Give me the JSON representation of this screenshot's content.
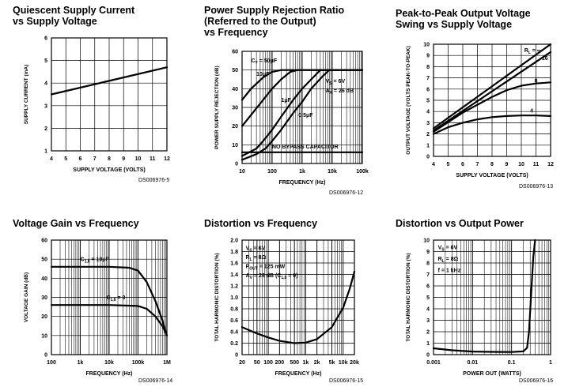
{
  "chart_data": [
    {
      "type": "line",
      "title": "Quiescent Supply Current\nvs Supply Voltage",
      "xlabel": "SUPPLY VOLTAGE (VOLTS)",
      "ylabel": "SUPPLY CURRENT (mA)",
      "figure_id": "DS006976-5",
      "x_scale": "linear",
      "xlim": [
        4,
        12
      ],
      "ylim": [
        1,
        6
      ],
      "x_ticks": [
        4,
        5,
        6,
        7,
        8,
        9,
        10,
        11,
        12
      ],
      "y_ticks": [
        1,
        2,
        3,
        4,
        5,
        6
      ],
      "x_tick_labels": [
        "4",
        "5",
        "6",
        "7",
        "8",
        "9",
        "10",
        "11",
        "12"
      ],
      "y_tick_labels": [
        "1",
        "2",
        "3",
        "4",
        "5",
        "6"
      ],
      "grid": true,
      "series": [
        {
          "x": [
            4,
            12
          ],
          "y": [
            3.5,
            4.7
          ]
        }
      ],
      "annotations": []
    },
    {
      "type": "line",
      "title": "Power Supply Rejection Ratio\n(Referred to the Output)\nvs Frequency",
      "xlabel": "FREQUENCY (Hz)",
      "ylabel": "POWER SUPPLY REJECTION (dB)",
      "figure_id": "DS006976-12",
      "x_scale": "log",
      "xlim": [
        10,
        100000
      ],
      "ylim": [
        0,
        60
      ],
      "x_ticks": [
        10,
        100,
        1000,
        10000,
        100000
      ],
      "y_ticks": [
        0,
        10,
        20,
        30,
        40,
        50,
        60
      ],
      "x_tick_labels": [
        "10",
        "100",
        "1k",
        "10k",
        "100k"
      ],
      "y_tick_labels": [
        "0",
        "10",
        "20",
        "30",
        "40",
        "50",
        "60"
      ],
      "grid": true,
      "series": [
        {
          "x": [
            10,
            20,
            50,
            100,
            200,
            500,
            1000,
            100000
          ],
          "y": [
            34,
            40,
            46,
            49,
            50,
            50,
            50,
            50
          ]
        },
        {
          "x": [
            10,
            20,
            50,
            100,
            200,
            400,
            700,
            1000,
            100000
          ],
          "y": [
            20,
            26,
            34,
            40,
            45,
            49,
            50,
            50,
            50
          ]
        },
        {
          "x": [
            10,
            30,
            50,
            100,
            200,
            500,
            1000,
            2000,
            4000,
            100000
          ],
          "y": [
            4,
            8,
            12,
            18,
            25,
            34,
            40,
            45,
            50,
            50
          ]
        },
        {
          "x": [
            10,
            30,
            60,
            100,
            200,
            500,
            1000,
            2000,
            5000,
            8000,
            100000
          ],
          "y": [
            2,
            5,
            8,
            12,
            18,
            27,
            33,
            40,
            47,
            50,
            50
          ]
        },
        {
          "x": [
            10,
            100000
          ],
          "y": [
            6,
            6
          ]
        }
      ],
      "annotations": [
        {
          "text": "C",
          "sub": "Y",
          "rest": " = 50μF",
          "x": 20,
          "y": 54
        },
        {
          "text": "10μF",
          "x": 30,
          "y": 47
        },
        {
          "text": "1μF",
          "x": 200,
          "y": 33
        },
        {
          "text": "0.5μF",
          "x": 750,
          "y": 25
        },
        {
          "text": "V",
          "sub": "S",
          "rest": " = 6V",
          "x": 6000,
          "y": 43
        },
        {
          "text": "A",
          "sub": "V",
          "rest": " = 26 dB",
          "x": 6000,
          "y": 38
        },
        {
          "text": "NO BYPASS CAPACITOR",
          "x": 100,
          "y": 8
        }
      ]
    },
    {
      "type": "line",
      "title": "Peak-to-Peak Output Voltage\nSwing vs Supply Voltage",
      "xlabel": "SUPPLY VOLTAGE (VOLTS)",
      "ylabel": "OUTPUT VOLTAGE (VOLTS PEAK-TO-PEAK)",
      "figure_id": "DS006976-13",
      "x_scale": "linear",
      "xlim": [
        4,
        12
      ],
      "ylim": [
        0,
        10
      ],
      "x_ticks": [
        4,
        5,
        6,
        7,
        8,
        9,
        10,
        11,
        12
      ],
      "y_ticks": [
        0,
        1,
        2,
        3,
        4,
        5,
        6,
        7,
        8,
        9,
        10
      ],
      "x_tick_labels": [
        "4",
        "5",
        "6",
        "7",
        "8",
        "9",
        "10",
        "11",
        "12"
      ],
      "y_tick_labels": [
        "0",
        "1",
        "2",
        "3",
        "4",
        "5",
        "6",
        "7",
        "8",
        "9",
        "10"
      ],
      "grid": true,
      "series": [
        {
          "x": [
            4,
            12
          ],
          "y": [
            2.5,
            10
          ]
        },
        {
          "x": [
            4,
            12
          ],
          "y": [
            2.3,
            9.3
          ]
        },
        {
          "x": [
            4,
            6,
            8,
            9,
            10,
            11,
            12
          ],
          "y": [
            2.2,
            3.9,
            5.3,
            5.9,
            6.3,
            6.5,
            6.6
          ]
        },
        {
          "x": [
            4,
            5,
            6,
            7,
            8,
            9,
            10,
            11,
            12
          ],
          "y": [
            2.0,
            2.6,
            3.0,
            3.3,
            3.5,
            3.6,
            3.65,
            3.65,
            3.6
          ]
        }
      ],
      "annotations": [
        {
          "text": "R",
          "sub": "L",
          "rest": " = ∞",
          "x": 10.2,
          "y": 9.3
        },
        {
          "text": "16",
          "x": 11.4,
          "y": 8.6
        },
        {
          "text": "8",
          "x": 10.9,
          "y": 6.6
        },
        {
          "text": "4",
          "x": 10.6,
          "y": 3.9
        }
      ]
    },
    {
      "type": "line",
      "title": "Voltage Gain vs Frequency",
      "xlabel": "FREQUENCY (Hz)",
      "ylabel": "VOLTAGE GAIN (dB)",
      "figure_id": "DS006976-14",
      "x_scale": "log",
      "xlim": [
        100,
        1000000
      ],
      "ylim": [
        0,
        60
      ],
      "x_ticks": [
        100,
        1000,
        10000,
        100000,
        1000000
      ],
      "y_ticks": [
        0,
        10,
        20,
        30,
        40,
        50,
        60
      ],
      "x_tick_labels": [
        "100",
        "1k",
        "10k",
        "100k",
        "1M"
      ],
      "y_tick_labels": [
        "0",
        "10",
        "20",
        "30",
        "40",
        "50",
        "60"
      ],
      "grid": true,
      "series": [
        {
          "x": [
            100,
            1000,
            10000,
            50000,
            100000,
            200000,
            400000,
            700000,
            1000000
          ],
          "y": [
            46,
            46,
            46,
            45.5,
            44,
            38,
            28,
            18,
            10
          ]
        },
        {
          "x": [
            100,
            1000,
            10000,
            100000,
            200000,
            400000,
            700000,
            1000000
          ],
          "y": [
            26,
            26,
            26,
            25.5,
            24,
            20,
            15,
            10
          ]
        }
      ],
      "annotations": [
        {
          "text": "C",
          "sub": "1,8",
          "rest": " = 10μF",
          "x": 1000,
          "y": 49
        },
        {
          "text": "C",
          "sub": "1,8",
          "rest": " = 0",
          "x": 8000,
          "y": 29
        }
      ]
    },
    {
      "type": "line",
      "title": "Distortion vs Frequency",
      "xlabel": "FREQUENCY (Hz)",
      "ylabel": "TOTAL HARMONIC DISTORTION (%)",
      "figure_id": "DS006976-15",
      "x_scale": "log",
      "xlim": [
        20,
        20000
      ],
      "ylim": [
        0,
        2.0
      ],
      "x_ticks": [
        20,
        50,
        100,
        200,
        500,
        1000,
        2000,
        5000,
        10000,
        20000
      ],
      "y_ticks": [
        0,
        0.2,
        0.4,
        0.6,
        0.8,
        1.0,
        1.2,
        1.4,
        1.6,
        1.8,
        2.0
      ],
      "x_tick_labels": [
        "20",
        "50",
        "100",
        "200",
        "500",
        "1k",
        "2k",
        "5k",
        "10k",
        "20k"
      ],
      "y_tick_labels": [
        "0",
        "0.2",
        "0.4",
        "0.6",
        "0.8",
        "1.0",
        "1.2",
        "1.4",
        "1.6",
        "1.8",
        "2.0"
      ],
      "grid": true,
      "series": [
        {
          "x": [
            20,
            50,
            100,
            200,
            500,
            1000,
            2000,
            5000,
            10000,
            15000,
            20000
          ],
          "y": [
            0.48,
            0.37,
            0.3,
            0.24,
            0.2,
            0.21,
            0.27,
            0.48,
            0.82,
            1.15,
            1.45
          ]
        }
      ],
      "annotations": [
        {
          "text": "V",
          "sub": "S",
          "rest": " = 6V",
          "x": 25,
          "y": 1.83
        },
        {
          "text": "R",
          "sub": "L",
          "rest": " = 8Ω",
          "x": 25,
          "y": 1.67
        },
        {
          "text": "P",
          "sub": "OUT",
          "rest": " = 125 mW",
          "x": 25,
          "y": 1.51
        },
        {
          "text": "A",
          "sub": "V",
          "rest": " = 26 dB (C",
          "sub2": "1,8",
          "rest2": " = 0)",
          "x": 25,
          "y": 1.35
        }
      ]
    },
    {
      "type": "line",
      "title": "Distortion vs Output Power",
      "xlabel": "POWER OUT (WATTS)",
      "ylabel": "TOTAL HARMONIC DISTORTION (%)",
      "figure_id": "DS006976-16",
      "x_scale": "log",
      "xlim": [
        0.001,
        1
      ],
      "ylim": [
        0,
        10
      ],
      "x_ticks": [
        0.001,
        0.01,
        0.1,
        1
      ],
      "y_ticks": [
        0,
        1,
        2,
        3,
        4,
        5,
        6,
        7,
        8,
        9,
        10
      ],
      "x_tick_labels": [
        "0.001",
        "0.01",
        "0.1",
        "1"
      ],
      "y_tick_labels": [
        "0",
        "1",
        "2",
        "3",
        "4",
        "5",
        "6",
        "7",
        "8",
        "9",
        "10"
      ],
      "grid": true,
      "series": [
        {
          "x": [
            0.001,
            0.003,
            0.01,
            0.03,
            0.1,
            0.2,
            0.25,
            0.28,
            0.32,
            0.36,
            0.4
          ],
          "y": [
            0.55,
            0.38,
            0.27,
            0.24,
            0.23,
            0.28,
            0.6,
            2.0,
            5.5,
            8.5,
            10
          ]
        }
      ],
      "annotations": [
        {
          "text": "V",
          "sub": "S",
          "rest": " = 6V",
          "x": 0.0013,
          "y": 9.2
        },
        {
          "text": "R",
          "sub": "L",
          "rest": " = 8Ω",
          "x": 0.0013,
          "y": 8.2
        },
        {
          "text": "f = 1 kHz",
          "x": 0.0013,
          "y": 7.2
        }
      ]
    }
  ]
}
